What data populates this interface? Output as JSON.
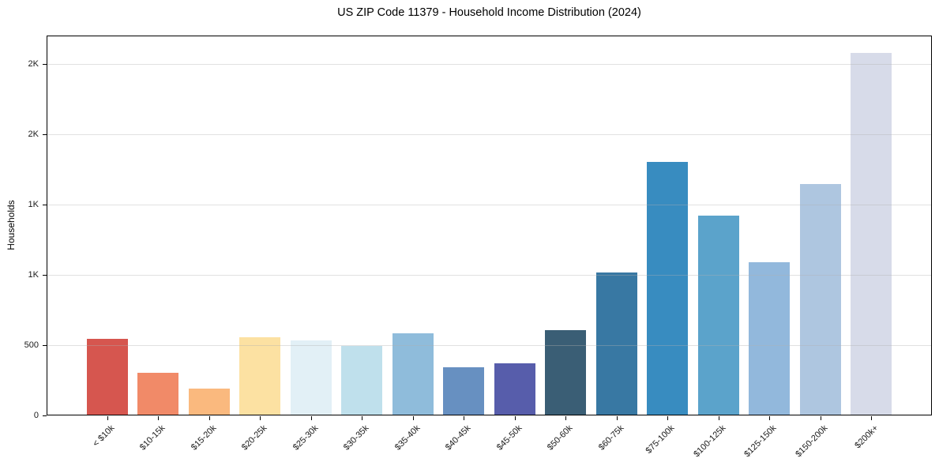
{
  "chart_data": {
    "type": "bar",
    "title": "US ZIP Code 11379 - Household Income Distribution (2024)",
    "xlabel": "",
    "ylabel": "Households",
    "ylim": [
      0,
      2700
    ],
    "grid": "horizontal",
    "legend": "none",
    "categories": [
      "< $10k",
      "$10-15k",
      "$15-20k",
      "$20-25k",
      "$25-30k",
      "$30-35k",
      "$35-40k",
      "$40-45k",
      "$45-50k",
      "$50-60k",
      "$60-75k",
      "$75-100k",
      "$100-125k",
      "$125-150k",
      "$150-200k",
      "$200k+"
    ],
    "values": [
      545,
      305,
      190,
      555,
      535,
      495,
      585,
      340,
      370,
      605,
      1015,
      1800,
      1420,
      1090,
      1645,
      2575
    ],
    "bar_colors": [
      "#d6564f",
      "#f18a68",
      "#fab97e",
      "#fce1a2",
      "#e2f0f6",
      "#bfe0ec",
      "#8fbcdb",
      "#6790c1",
      "#575dab",
      "#3a5e75",
      "#3878a3",
      "#388cc0",
      "#5ba3cb",
      "#92b8dc",
      "#aec6e0",
      "#d7dbe9"
    ],
    "yticks": [
      {
        "value": 0,
        "label": "0"
      },
      {
        "value": 500,
        "label": "500"
      },
      {
        "value": 1000,
        "label": "1K"
      },
      {
        "value": 1500,
        "label": "1K"
      },
      {
        "value": 2000,
        "label": "2K"
      },
      {
        "value": 2500,
        "label": "2K"
      }
    ]
  }
}
